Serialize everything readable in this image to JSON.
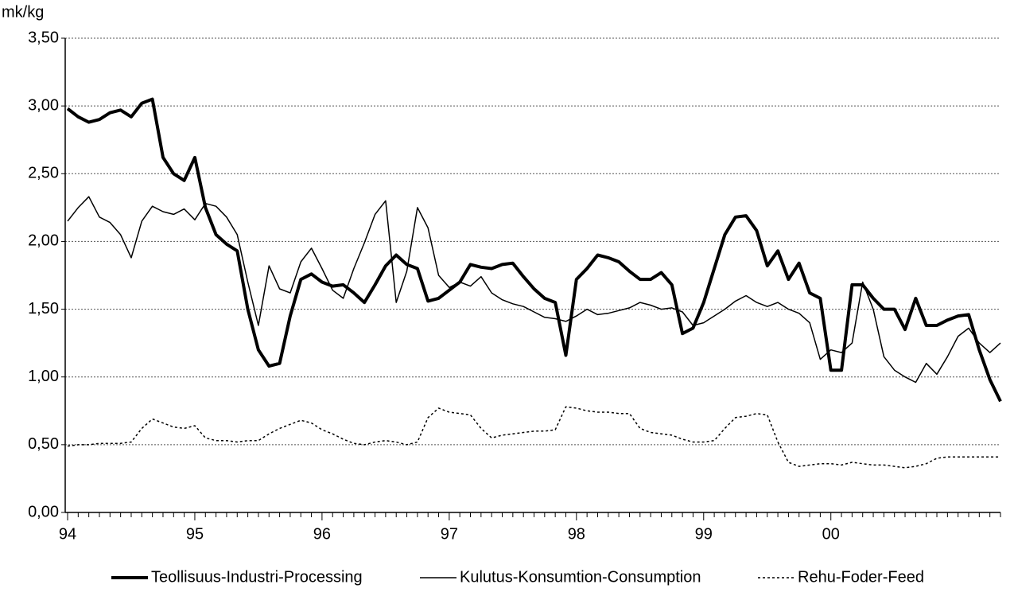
{
  "chart_data": {
    "type": "line",
    "y_label": "mk/kg",
    "categories": [
      "94",
      null,
      null,
      null,
      null,
      null,
      null,
      null,
      null,
      null,
      null,
      null,
      "95",
      null,
      null,
      null,
      null,
      null,
      null,
      null,
      null,
      null,
      null,
      null,
      "96",
      null,
      null,
      null,
      null,
      null,
      null,
      null,
      null,
      null,
      null,
      null,
      "97",
      null,
      null,
      null,
      null,
      null,
      null,
      null,
      null,
      null,
      null,
      null,
      "98",
      null,
      null,
      null,
      null,
      null,
      null,
      null,
      null,
      null,
      null,
      null,
      "99",
      null,
      null,
      null,
      null,
      null,
      null,
      null,
      null,
      null,
      null,
      null,
      "00",
      null,
      null,
      null,
      null,
      null,
      null,
      null,
      null,
      null,
      null,
      null,
      null,
      null,
      null,
      null,
      null
    ],
    "series": [
      {
        "name": "Teollisuus-Industri-Processing",
        "color": "#000000",
        "linewidth": 4,
        "linestyle": "solid",
        "values": [
          2.98,
          2.92,
          2.88,
          2.9,
          2.95,
          2.97,
          2.92,
          3.02,
          3.05,
          2.62,
          2.5,
          2.45,
          2.62,
          2.25,
          2.05,
          1.98,
          1.93,
          1.5,
          1.2,
          1.08,
          1.1,
          1.45,
          1.72,
          1.76,
          1.7,
          1.67,
          1.68,
          1.62,
          1.55,
          1.68,
          1.82,
          1.9,
          1.83,
          1.8,
          1.56,
          1.58,
          1.64,
          1.7,
          1.83,
          1.81,
          1.8,
          1.83,
          1.84,
          1.74,
          1.65,
          1.58,
          1.55,
          1.16,
          1.72,
          1.8,
          1.9,
          1.88,
          1.85,
          1.78,
          1.72,
          1.72,
          1.77,
          1.68,
          1.32,
          1.36,
          1.55,
          1.8,
          2.05,
          2.18,
          2.19,
          2.08,
          1.82,
          1.93,
          1.72,
          1.84,
          1.62,
          1.58,
          1.05,
          1.05,
          1.68,
          1.68,
          1.58,
          1.5,
          1.5,
          1.35,
          1.58,
          1.38,
          1.38,
          1.42,
          1.45,
          1.46,
          1.2,
          0.98,
          0.82
        ]
      },
      {
        "name": "Kulutus-Konsumtion-Consumption",
        "color": "#000000",
        "linewidth": 1.5,
        "linestyle": "solid",
        "values": [
          2.15,
          2.25,
          2.33,
          2.18,
          2.14,
          2.05,
          1.88,
          2.15,
          2.26,
          2.22,
          2.2,
          2.24,
          2.16,
          2.28,
          2.26,
          2.18,
          2.05,
          1.7,
          1.38,
          1.82,
          1.65,
          1.62,
          1.85,
          1.95,
          1.8,
          1.64,
          1.58,
          1.8,
          1.99,
          2.2,
          2.3,
          1.55,
          1.78,
          2.25,
          2.1,
          1.75,
          1.66,
          1.7,
          1.67,
          1.74,
          1.62,
          1.57,
          1.54,
          1.52,
          1.48,
          1.44,
          1.43,
          1.41,
          1.45,
          1.5,
          1.46,
          1.47,
          1.49,
          1.51,
          1.55,
          1.53,
          1.5,
          1.51,
          1.48,
          1.38,
          1.4,
          1.45,
          1.5,
          1.56,
          1.6,
          1.55,
          1.52,
          1.55,
          1.5,
          1.47,
          1.4,
          1.13,
          1.2,
          1.18,
          1.25,
          1.7,
          1.5,
          1.15,
          1.05,
          1.0,
          0.96,
          1.1,
          1.02,
          1.15,
          1.3,
          1.36,
          1.25,
          1.18,
          1.25
        ]
      },
      {
        "name": "Rehu-Foder-Feed",
        "color": "#000000",
        "linewidth": 1.5,
        "linestyle": "dotted",
        "values": [
          0.49,
          0.5,
          0.5,
          0.51,
          0.51,
          0.51,
          0.52,
          0.62,
          0.69,
          0.66,
          0.63,
          0.62,
          0.64,
          0.55,
          0.53,
          0.53,
          0.52,
          0.53,
          0.53,
          0.58,
          0.62,
          0.65,
          0.68,
          0.66,
          0.61,
          0.58,
          0.54,
          0.51,
          0.5,
          0.52,
          0.53,
          0.52,
          0.5,
          0.52,
          0.7,
          0.77,
          0.74,
          0.73,
          0.72,
          0.62,
          0.55,
          0.57,
          0.58,
          0.59,
          0.6,
          0.6,
          0.61,
          0.78,
          0.77,
          0.75,
          0.74,
          0.74,
          0.73,
          0.73,
          0.62,
          0.59,
          0.58,
          0.57,
          0.54,
          0.52,
          0.52,
          0.53,
          0.62,
          0.7,
          0.71,
          0.73,
          0.72,
          0.52,
          0.37,
          0.34,
          0.35,
          0.36,
          0.36,
          0.35,
          0.37,
          0.36,
          0.35,
          0.35,
          0.34,
          0.33,
          0.34,
          0.36,
          0.4,
          0.41,
          0.41,
          0.41,
          0.41,
          0.41,
          0.41
        ]
      }
    ],
    "ylim": [
      0,
      3.5
    ],
    "yticks": [
      {
        "value": 0,
        "label": "0,00"
      },
      {
        "value": 0.5,
        "label": "0,50"
      },
      {
        "value": 1,
        "label": "1,00"
      },
      {
        "value": 1.5,
        "label": "1,50"
      },
      {
        "value": 2,
        "label": "2,00"
      },
      {
        "value": 2.5,
        "label": "2,50"
      },
      {
        "value": 3,
        "label": "3,00"
      },
      {
        "value": 3.5,
        "label": "3,50"
      }
    ],
    "grid": true,
    "legend": "bottom"
  }
}
